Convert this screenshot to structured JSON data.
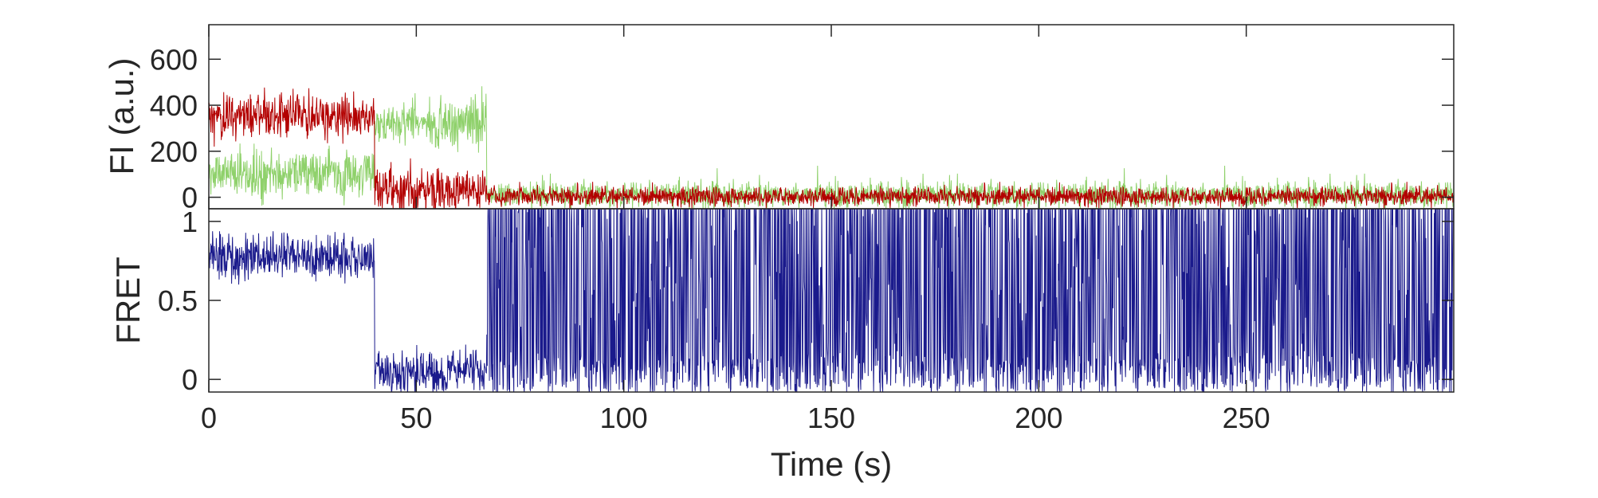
{
  "chart_data": [
    {
      "type": "line",
      "panel": "top",
      "ylabel": "FI (a.u.)",
      "xlim": [
        0,
        300
      ],
      "ylim": [
        -50,
        750
      ],
      "yticks": [
        0,
        200,
        400,
        600
      ],
      "ytick_labels": [
        "0",
        "200",
        "400",
        "600"
      ],
      "segments": [
        {
          "x": [
            0,
            40
          ],
          "red": 350,
          "green": 100
        },
        {
          "x": [
            40,
            67
          ],
          "red": 25,
          "green": 330
        },
        {
          "x": [
            67,
            300
          ],
          "red": 5,
          "green": 10
        }
      ],
      "series": [
        {
          "color": "#b30000"
        },
        {
          "color": "#8fd16b"
        }
      ]
    },
    {
      "type": "line",
      "panel": "bottom",
      "ylabel": "FRET",
      "xlabel": "Time (s)",
      "xlim": [
        0,
        300
      ],
      "ylim": [
        -0.08,
        1.08
      ],
      "yticks": [
        0,
        0.5,
        1
      ],
      "ytick_labels": [
        "0",
        "0.5",
        "1"
      ],
      "xticks": [
        0,
        50,
        100,
        150,
        200,
        250
      ],
      "xtick_labels": [
        "0",
        "50",
        "100",
        "150",
        "200",
        "250"
      ],
      "segments": [
        {
          "x": [
            0,
            40
          ],
          "level": 0.78
        },
        {
          "x": [
            40,
            67
          ],
          "level": 0.05
        },
        {
          "x": [
            67,
            300
          ],
          "level": "noise"
        }
      ],
      "series": [
        {
          "color": "#1a1a8c"
        }
      ]
    }
  ]
}
